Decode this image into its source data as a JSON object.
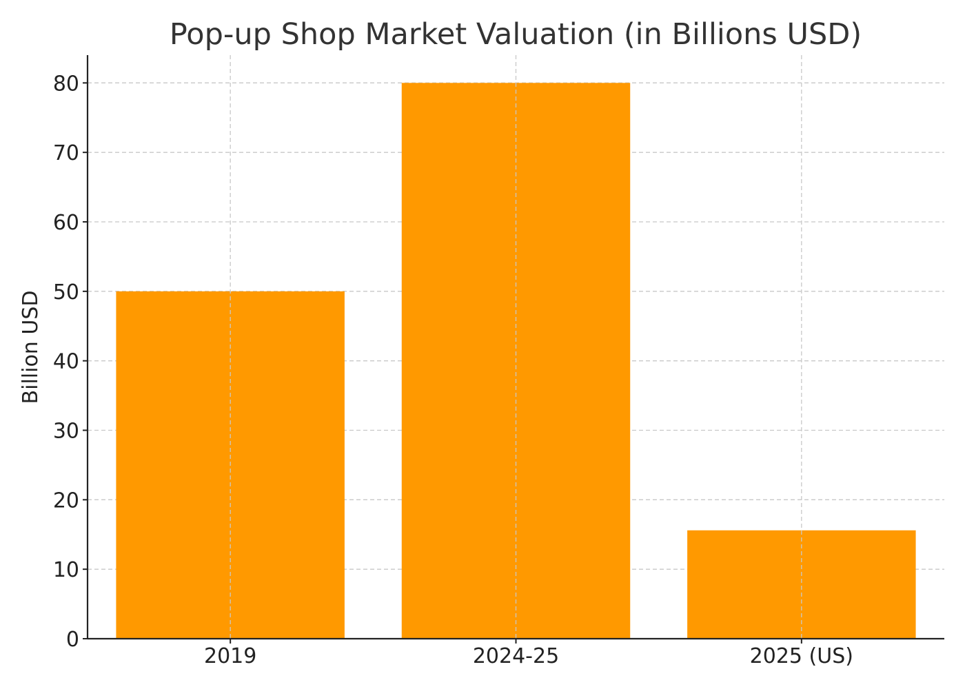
{
  "chart_data": {
    "type": "bar",
    "title": "Pop-up Shop Market Valuation (in Billions USD)",
    "xlabel": "",
    "ylabel": "Billion USD",
    "categories": [
      "2019",
      "2024-25",
      "2025 (US)"
    ],
    "values": [
      50,
      80,
      15.6
    ],
    "ylim": [
      0,
      84
    ],
    "yticks": [
      0,
      10,
      20,
      30,
      40,
      50,
      60,
      70,
      80
    ],
    "grid": true,
    "bar_color": "#ff9900"
  }
}
